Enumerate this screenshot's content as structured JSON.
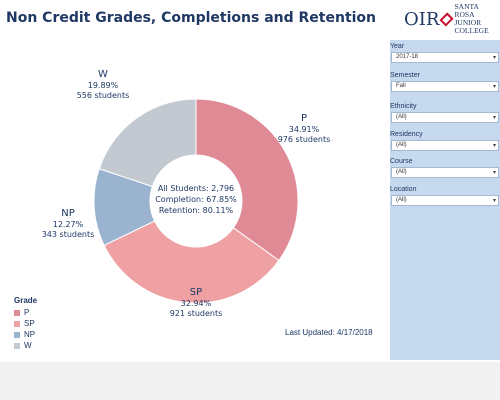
{
  "title": "Non Credit Grades, Completions and Retention",
  "logo": {
    "mark": "OIR",
    "line1": "SANTA ROSA",
    "line2": "JUNIOR COLLEGE"
  },
  "chart_data": {
    "type": "pie",
    "variant": "donut",
    "slices": [
      {
        "name": "P",
        "percent_label": "34.91%",
        "students_label": "976 students",
        "students": 976,
        "color": "#e08a96"
      },
      {
        "name": "SP",
        "percent_label": "32.94%",
        "students_label": "921 students",
        "students": 921,
        "color": "#eea0a3"
      },
      {
        "name": "NP",
        "percent_label": "12.27%",
        "students_label": "343 students",
        "students": 343,
        "color": "#9ab3cf"
      },
      {
        "name": "W",
        "percent_label": "19.89%",
        "students_label": "556 students",
        "students": 556,
        "color": "#c3c9d0"
      }
    ],
    "center": {
      "all_students": "All Students: 2,796",
      "completion": "Completion: 67.85%",
      "retention": "Retention: 80.11%"
    },
    "legend": {
      "title": "Grade",
      "placement": "bottom-left"
    }
  },
  "last_updated": "Last Updated: 4/17/2018",
  "filters": [
    {
      "label": "Year",
      "value": "2017-18"
    },
    {
      "label": "Semester",
      "value": "Fall"
    },
    {
      "label": "Ethnicity",
      "value": "(All)"
    },
    {
      "label": "Residency",
      "value": "(All)"
    },
    {
      "label": "Course",
      "value": "(All)"
    },
    {
      "label": "Location",
      "value": "(All)"
    }
  ]
}
